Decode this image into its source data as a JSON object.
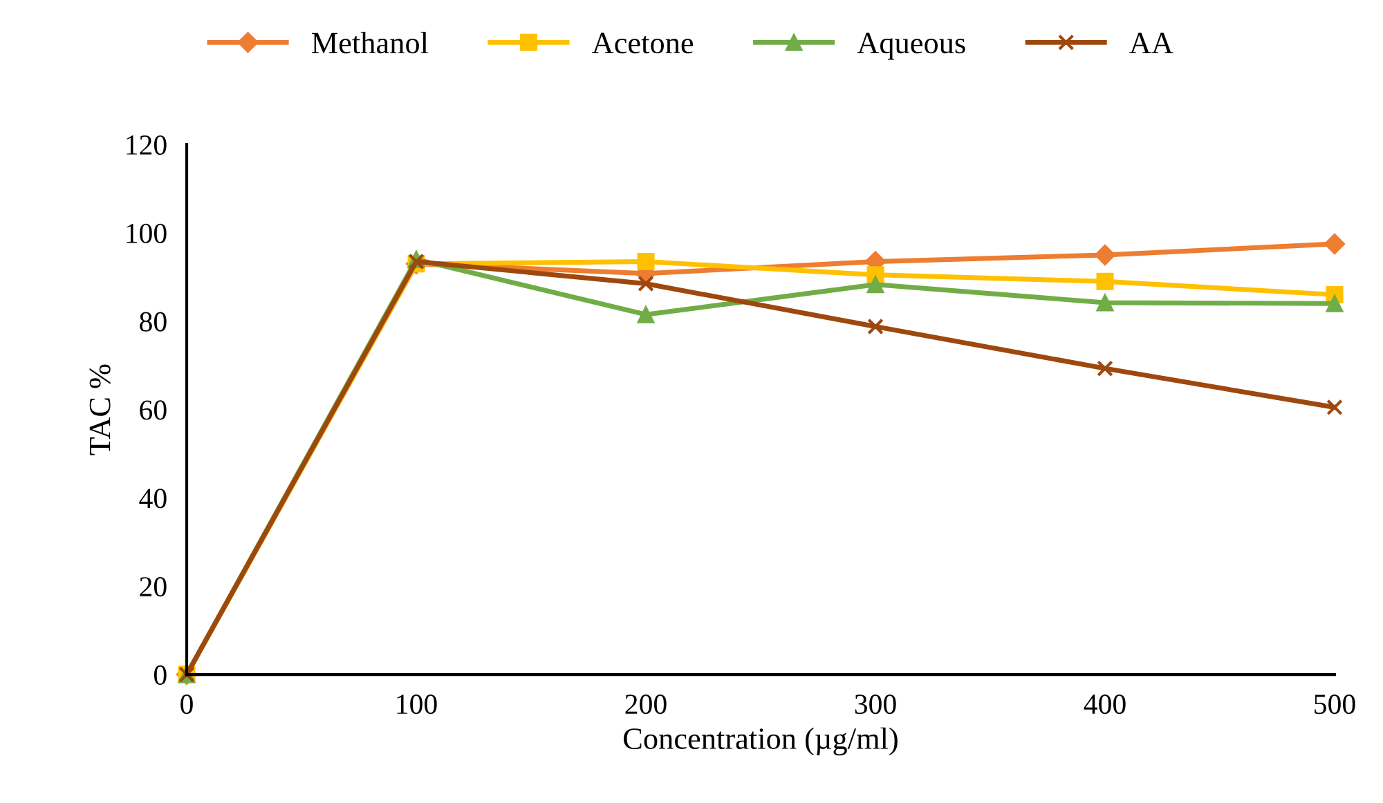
{
  "chart_data": {
    "type": "line",
    "xlabel": "Concentration (µg/ml)",
    "ylabel": "TAC %",
    "x": [
      0,
      100,
      200,
      300,
      400,
      500
    ],
    "series": [
      {
        "name": "Methanol",
        "color": "#ed7d31",
        "marker": "diamond",
        "values": [
          0,
          93,
          90.8,
          93.5,
          95,
          97.5
        ]
      },
      {
        "name": "Acetone",
        "color": "#ffc000",
        "marker": "square",
        "values": [
          0,
          93,
          93.5,
          90.5,
          89,
          86
        ]
      },
      {
        "name": "Aqueous",
        "color": "#70ad47",
        "marker": "triangle",
        "values": [
          0,
          94,
          81.5,
          88.3,
          84.2,
          84
        ]
      },
      {
        "name": "AA",
        "color": "#9e480e",
        "marker": "cross",
        "values": [
          0,
          93.5,
          88.5,
          78.8,
          69.3,
          60.5
        ]
      }
    ],
    "xlim": [
      0,
      500
    ],
    "ylim": [
      0,
      120
    ],
    "xticks": [
      0,
      100,
      200,
      300,
      400,
      500
    ],
    "yticks": [
      0,
      20,
      40,
      60,
      80,
      100,
      120
    ],
    "grid": false,
    "legend": "top",
    "line_style": "solid"
  }
}
